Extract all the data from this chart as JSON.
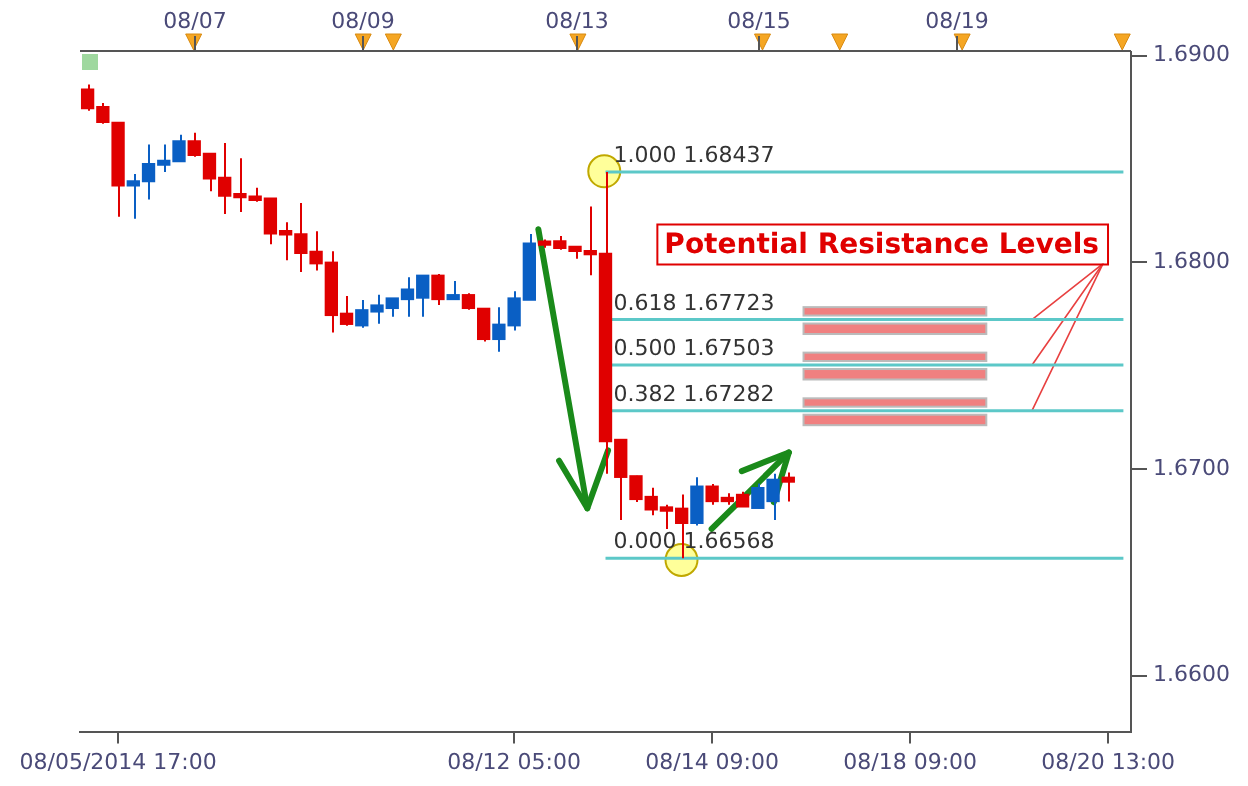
{
  "chart_data": {
    "type": "candlestick",
    "categories": [
      null,
      null,
      "08/05/2014 17:00",
      null,
      null,
      null,
      null,
      null,
      null,
      null,
      null,
      null,
      null,
      null,
      null,
      null,
      null,
      null,
      null,
      null,
      null,
      null,
      null,
      null,
      null,
      null,
      null,
      null,
      "08/12 05:00",
      null,
      null,
      null,
      null,
      null,
      null,
      null,
      null,
      null,
      null,
      null,
      null,
      "08/14 09:00",
      null,
      null,
      null,
      null,
      null,
      null,
      null,
      null,
      null,
      null,
      null,
      null,
      "08/18 09:00",
      null,
      null,
      null,
      null,
      null,
      null,
      null,
      null,
      null,
      null,
      null,
      null,
      "08/20 13:00",
      null
    ],
    "ohlc": [
      [
        1.68837,
        1.6886,
        1.68733,
        1.68743
      ],
      [
        1.68753,
        1.6877,
        1.6867,
        1.68677
      ],
      [
        1.68677,
        1.68677,
        1.6822,
        1.6837
      ],
      [
        1.6837,
        1.68427,
        1.6821,
        1.68393
      ],
      [
        1.6839,
        1.6857,
        1.68303,
        1.68477
      ],
      [
        1.6847,
        1.6857,
        1.68437,
        1.68493
      ],
      [
        1.68487,
        1.68617,
        1.68487,
        1.68587
      ],
      [
        1.68587,
        1.68627,
        1.6851,
        1.68517
      ],
      [
        1.68527,
        1.68527,
        1.68343,
        1.68403
      ],
      [
        1.6841,
        1.68577,
        1.68233,
        1.6832
      ],
      [
        1.68327,
        1.68503,
        1.68243,
        1.68313
      ],
      [
        1.6832,
        1.6836,
        1.68293,
        1.683
      ],
      [
        1.6831,
        1.6831,
        1.68087,
        1.68137
      ],
      [
        1.6815,
        1.68193,
        1.6801,
        1.68133
      ],
      [
        1.68137,
        1.68287,
        1.67953,
        1.68043
      ],
      [
        1.68053,
        1.6815,
        1.6796,
        1.67993
      ],
      [
        1.68,
        1.68053,
        1.6766,
        1.67743
      ],
      [
        1.67753,
        1.67837,
        1.67693,
        1.677
      ],
      [
        1.67693,
        1.67817,
        1.67683,
        1.6777
      ],
      [
        1.6776,
        1.67843,
        1.67703,
        1.67793
      ],
      [
        1.67777,
        1.67827,
        1.67737,
        1.67827
      ],
      [
        1.6782,
        1.67927,
        1.67737,
        1.6787
      ],
      [
        1.67827,
        1.67937,
        1.67737,
        1.67937
      ],
      [
        1.67937,
        1.67943,
        1.67793,
        1.6782
      ],
      [
        1.6782,
        1.6791,
        1.6782,
        1.67843
      ],
      [
        1.67843,
        1.6785,
        1.6777,
        1.67777
      ],
      [
        1.67777,
        1.67777,
        1.67617,
        1.67627
      ],
      [
        1.67627,
        1.67783,
        1.67567,
        1.677
      ],
      [
        1.67693,
        1.6786,
        1.6767,
        1.67827
      ],
      [
        1.67817,
        1.68137,
        1.67817,
        1.68093
      ],
      [
        1.68097,
        1.6811,
        1.6807,
        1.68083
      ],
      [
        1.68103,
        1.68127,
        1.6806,
        1.68067
      ],
      [
        1.68077,
        1.68077,
        1.68017,
        1.68053
      ],
      [
        1.6805,
        1.6827,
        1.67937,
        1.68037
      ],
      [
        1.68043,
        1.68437,
        1.66977,
        1.67133
      ],
      [
        1.67143,
        1.67143,
        1.66753,
        1.6696
      ],
      [
        1.66967,
        1.66967,
        1.6684,
        1.66853
      ],
      [
        1.66867,
        1.6691,
        1.66777,
        1.66803
      ],
      [
        1.66815,
        1.66827,
        1.6671,
        1.66797
      ],
      [
        1.6681,
        1.66877,
        1.66568,
        1.66737
      ],
      [
        1.66737,
        1.6696,
        1.66727,
        1.66917
      ],
      [
        1.66917,
        1.66927,
        1.66827,
        1.66843
      ],
      [
        1.6686,
        1.66883,
        1.66827,
        1.66843
      ],
      [
        1.66877,
        1.6689,
        1.66817,
        1.66817
      ],
      [
        1.6681,
        1.6693,
        1.6681,
        1.6691
      ],
      [
        1.66843,
        1.66977,
        1.66753,
        1.6695
      ],
      [
        1.6696,
        1.66983,
        1.66843,
        1.66937
      ],
      null,
      null,
      null,
      null,
      null,
      null,
      null,
      null,
      null,
      null,
      null,
      null,
      null,
      null,
      null,
      null,
      null,
      null,
      null,
      null,
      null,
      null
    ],
    "colors": [
      "#e00000",
      "#e00000",
      "#e00000",
      "#0a5fc4",
      "#0a5fc4",
      "#0a5fc4",
      "#0a5fc4",
      "#e00000",
      "#e00000",
      "#e00000",
      "#e00000",
      "#e00000",
      "#e00000",
      "#e00000",
      "#e00000",
      "#e00000",
      "#e00000",
      "#e00000",
      "#0a5fc4",
      "#0a5fc4",
      "#0a5fc4",
      "#0a5fc4",
      "#0a5fc4",
      "#e00000",
      "#0a5fc4",
      "#e00000",
      "#e00000",
      "#0a5fc4",
      "#0a5fc4",
      "#0a5fc4",
      "#e00000",
      "#e00000",
      "#e00000",
      "#e00000",
      "#e00000",
      "#e00000",
      "#e00000",
      "#e00000",
      "#e00000",
      "#e00000",
      "#0a5fc4",
      "#e00000",
      "#e00000",
      "#e00000",
      "#0a5fc4",
      "#0a5fc4",
      "#e00000",
      null,
      null,
      null,
      null,
      null,
      null,
      null,
      null,
      null,
      null,
      null,
      null,
      null,
      null,
      null,
      null,
      null,
      null,
      null,
      null,
      null,
      null
    ],
    "series": [
      {
        "type": "line",
        "name": "1.000 1.68437",
        "color": "#5cc8c8",
        "values": [
          null,
          null,
          null,
          null,
          null,
          null,
          null,
          null,
          null,
          null,
          null,
          null,
          null,
          null,
          null,
          null,
          null,
          null,
          null,
          null,
          null,
          null,
          null,
          null,
          null,
          null,
          null,
          null,
          null,
          null,
          null,
          null,
          null,
          null,
          1.68437,
          1.68437,
          1.68437,
          1.68437,
          1.68437,
          1.68437,
          1.68437,
          1.68437,
          1.68437,
          1.68437,
          1.68437,
          1.68437,
          1.68437,
          1.68437,
          1.68437,
          1.68437,
          1.68437,
          1.68437,
          1.68437,
          1.68437,
          1.68437,
          1.68437,
          1.68437,
          1.68437,
          1.68437,
          1.68437,
          1.68437,
          1.68437,
          1.68437,
          1.68437,
          1.68437,
          1.68437,
          1.68437,
          1.68437,
          1.68437
        ]
      },
      {
        "type": "line",
        "name": "0.618 1.67723",
        "color": "#5cc8c8",
        "values": [
          null,
          null,
          null,
          null,
          null,
          null,
          null,
          null,
          null,
          null,
          null,
          null,
          null,
          null,
          null,
          null,
          null,
          null,
          null,
          null,
          null,
          null,
          null,
          null,
          null,
          null,
          null,
          null,
          null,
          null,
          null,
          null,
          null,
          null,
          1.67723,
          1.67723,
          1.67723,
          1.67723,
          1.67723,
          1.67723,
          1.67723,
          1.67723,
          1.67723,
          1.67723,
          1.67723,
          1.67723,
          1.67723,
          1.67723,
          1.67723,
          1.67723,
          1.67723,
          1.67723,
          1.67723,
          1.67723,
          1.67723,
          1.67723,
          1.67723,
          1.67723,
          1.67723,
          1.67723,
          1.67723,
          1.67723,
          1.67723,
          1.67723,
          1.67723,
          1.67723,
          1.67723,
          1.67723,
          1.67723
        ]
      },
      {
        "type": "line",
        "name": "0.500 1.67503",
        "color": "#5cc8c8",
        "values": [
          null,
          null,
          null,
          null,
          null,
          null,
          null,
          null,
          null,
          null,
          null,
          null,
          null,
          null,
          null,
          null,
          null,
          null,
          null,
          null,
          null,
          null,
          null,
          null,
          null,
          null,
          null,
          null,
          null,
          null,
          null,
          null,
          null,
          null,
          1.67503,
          1.67503,
          1.67503,
          1.67503,
          1.67503,
          1.67503,
          1.67503,
          1.67503,
          1.67503,
          1.67503,
          1.67503,
          1.67503,
          1.67503,
          1.67503,
          1.67503,
          1.67503,
          1.67503,
          1.67503,
          1.67503,
          1.67503,
          1.67503,
          1.67503,
          1.67503,
          1.67503,
          1.67503,
          1.67503,
          1.67503,
          1.67503,
          1.67503,
          1.67503,
          1.67503,
          1.67503,
          1.67503,
          1.67503,
          1.67503
        ]
      },
      {
        "type": "line",
        "name": "0.382 1.67282",
        "color": "#5cc8c8",
        "values": [
          null,
          null,
          null,
          null,
          null,
          null,
          null,
          null,
          null,
          null,
          null,
          null,
          null,
          null,
          null,
          null,
          null,
          null,
          null,
          null,
          null,
          null,
          null,
          null,
          null,
          null,
          null,
          null,
          null,
          null,
          null,
          null,
          null,
          null,
          1.67282,
          1.67282,
          1.67282,
          1.67282,
          1.67282,
          1.67282,
          1.67282,
          1.67282,
          1.67282,
          1.67282,
          1.67282,
          1.67282,
          1.67282,
          1.67282,
          1.67282,
          1.67282,
          1.67282,
          1.67282,
          1.67282,
          1.67282,
          1.67282,
          1.67282,
          1.67282,
          1.67282,
          1.67282,
          1.67282,
          1.67282,
          1.67282,
          1.67282,
          1.67282,
          1.67282,
          1.67282,
          1.67282,
          1.67282,
          1.67282
        ]
      },
      {
        "type": "line",
        "name": "0.000 1.66568",
        "color": "#5cc8c8",
        "values": [
          null,
          null,
          null,
          null,
          null,
          null,
          null,
          null,
          null,
          null,
          null,
          null,
          null,
          null,
          null,
          null,
          null,
          null,
          null,
          null,
          null,
          null,
          null,
          null,
          null,
          null,
          null,
          null,
          null,
          null,
          null,
          null,
          null,
          null,
          1.66568,
          1.66568,
          1.66568,
          1.66568,
          1.66568,
          1.66568,
          1.66568,
          1.66568,
          1.66568,
          1.66568,
          1.66568,
          1.66568,
          1.66568,
          1.66568,
          1.66568,
          1.66568,
          1.66568,
          1.66568,
          1.66568,
          1.66568,
          1.66568,
          1.66568,
          1.66568,
          1.66568,
          1.66568,
          1.66568,
          1.66568,
          1.66568,
          1.66568,
          1.66568,
          1.66568,
          1.66568,
          1.66568,
          1.66568,
          1.66568
        ]
      }
    ],
    "annotations": [
      "08/07",
      "08/09",
      "08/13",
      "08/15",
      "08/19",
      {
        "text": "Potential Resistance Levels",
        "y": 1.67723
      }
    ],
    "ylim": [
      1.6573,
      1.69017
    ],
    "yticks": [
      {
        "value": 1.66,
        "label": "1.6600"
      },
      {
        "value": 1.67,
        "label": "1.6700"
      },
      {
        "value": 1.68,
        "label": "1.6800"
      },
      {
        "value": 1.69,
        "label": "1.6900"
      }
    ],
    "grid": false,
    "legend": false,
    "marker": "none"
  }
}
